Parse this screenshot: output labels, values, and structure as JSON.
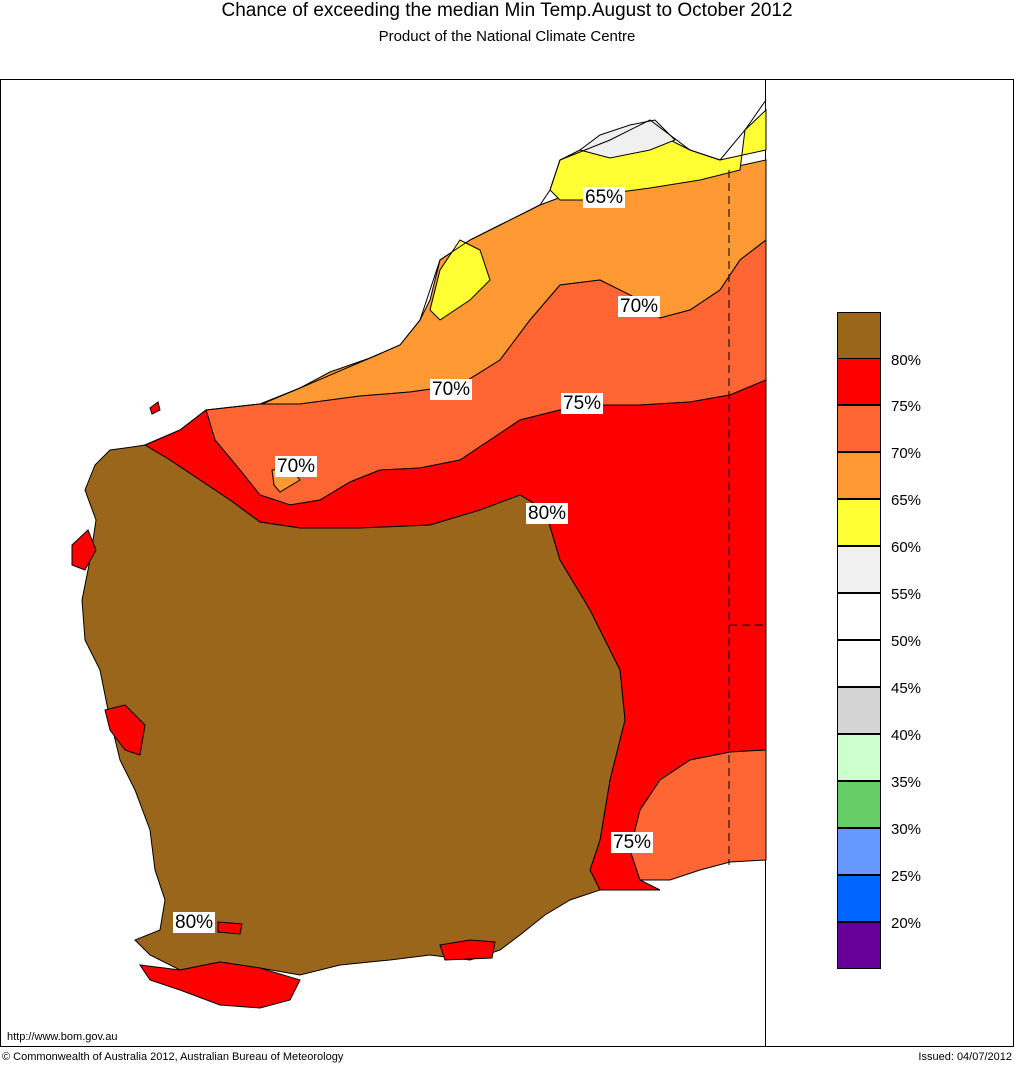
{
  "title": "Chance of exceeding the median Min Temp.August to October 2012",
  "subtitle": "Product of the National Climate Centre",
  "colors": {
    "c80plus": "#99661c",
    "c75_80": "#ff0000",
    "c70_75": "#ff6633",
    "c65_70": "#ff9933",
    "c60_65": "#ffff33",
    "c55_60": "#f0f0f0",
    "c50_55": "#ffffff",
    "c45_50": "#ffffff",
    "c40_45": "#d4d4d4",
    "c35_40": "#ccffcc",
    "c30_35": "#66cc66",
    "c25_30": "#6699ff",
    "c20_25": "#0066ff",
    "c_below20": "#660099"
  },
  "legend": {
    "labels": [
      "80%",
      "75%",
      "70%",
      "65%",
      "60%",
      "55%",
      "50%",
      "45%",
      "40%",
      "35%",
      "30%",
      "25%",
      "20%"
    ]
  },
  "map_labels": {
    "l1": "65%",
    "l2": "70%",
    "l3": "70%",
    "l4": "75%",
    "l5": "70%",
    "l6": "80%",
    "l7": "75%",
    "l8": "80%"
  },
  "footer": {
    "url": "http://www.bom.gov.au",
    "copyright": "© Commonwealth of Australia 2012, Australian Bureau of Meteorology",
    "issued": "Issued: 04/07/2012"
  }
}
